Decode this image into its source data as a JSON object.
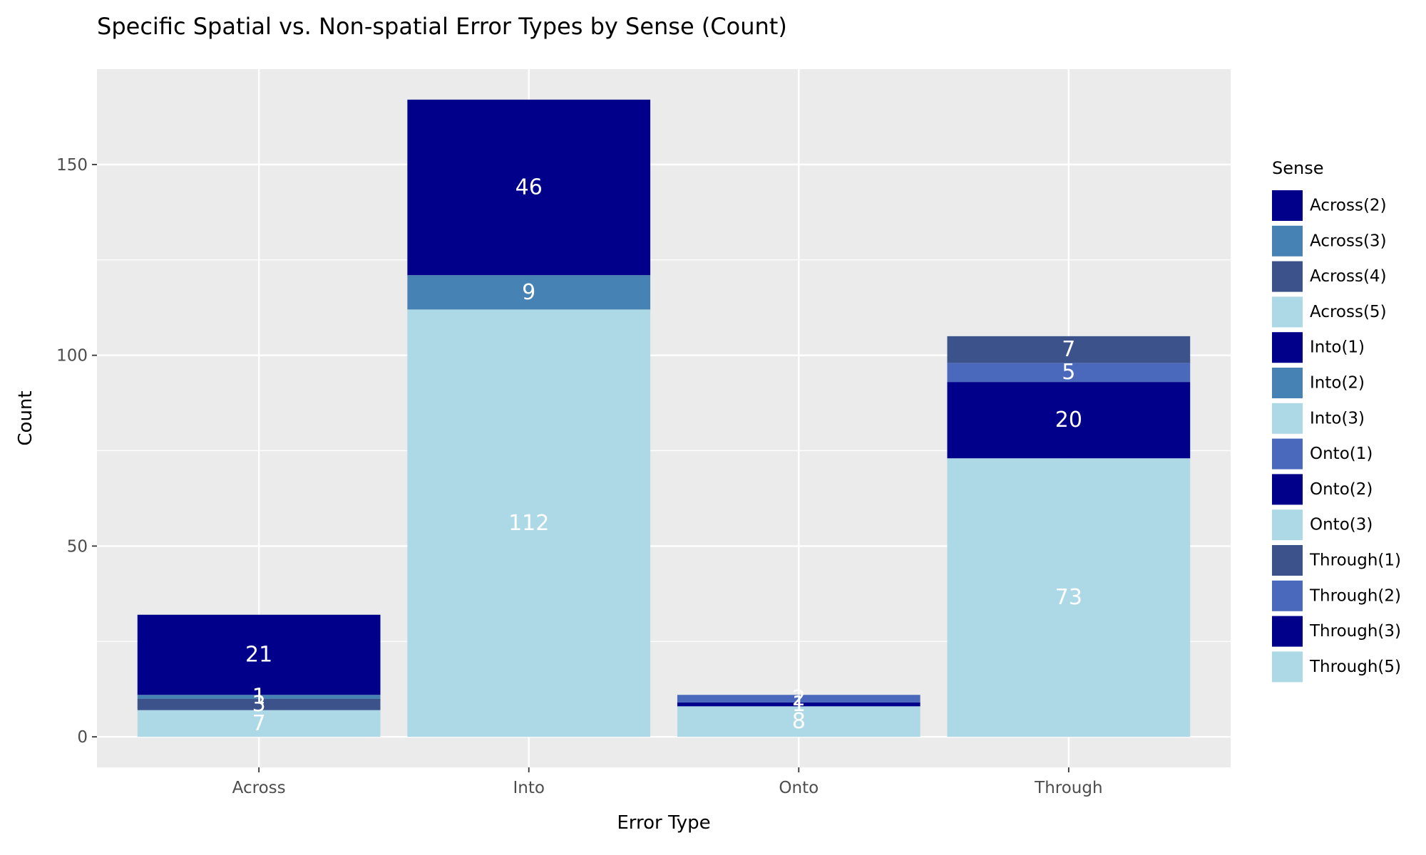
{
  "chart_data": {
    "type": "bar",
    "stacked": true,
    "title": "Specific Spatial vs. Non-spatial Error Types by Sense (Count)",
    "xlabel": "Error Type",
    "ylabel": "Count",
    "categories": [
      "Across",
      "Into",
      "Onto",
      "Through"
    ],
    "ylim": [
      -8,
      175
    ],
    "yticks": [
      0,
      50,
      100,
      150
    ],
    "grid": true,
    "legend_title": "Sense",
    "legend_position": "right",
    "legend": [
      {
        "name": "Across(2)",
        "color": "#00008b"
      },
      {
        "name": "Across(3)",
        "color": "#4682b4"
      },
      {
        "name": "Across(4)",
        "color": "#3b528b"
      },
      {
        "name": "Across(5)",
        "color": "#add8e6"
      },
      {
        "name": "Into(1)",
        "color": "#00008b"
      },
      {
        "name": "Into(2)",
        "color": "#4682b4"
      },
      {
        "name": "Into(3)",
        "color": "#add8e6"
      },
      {
        "name": "Onto(1)",
        "color": "#4a69bd"
      },
      {
        "name": "Onto(2)",
        "color": "#00008b"
      },
      {
        "name": "Onto(3)",
        "color": "#add8e6"
      },
      {
        "name": "Through(1)",
        "color": "#3b528b"
      },
      {
        "name": "Through(2)",
        "color": "#4a69bd"
      },
      {
        "name": "Through(3)",
        "color": "#00008b"
      },
      {
        "name": "Through(5)",
        "color": "#add8e6"
      }
    ],
    "stacks": [
      {
        "category": "Across",
        "segments": [
          {
            "sense": "Across(5)",
            "value": 7
          },
          {
            "sense": "Across(4)",
            "value": 3
          },
          {
            "sense": "Across(3)",
            "value": 1
          },
          {
            "sense": "Across(2)",
            "value": 21
          }
        ]
      },
      {
        "category": "Into",
        "segments": [
          {
            "sense": "Into(3)",
            "value": 112
          },
          {
            "sense": "Into(2)",
            "value": 9
          },
          {
            "sense": "Into(1)",
            "value": 46
          }
        ]
      },
      {
        "category": "Onto",
        "segments": [
          {
            "sense": "Onto(3)",
            "value": 8
          },
          {
            "sense": "Onto(2)",
            "value": 1
          },
          {
            "sense": "Onto(1)",
            "value": 2
          }
        ]
      },
      {
        "category": "Through",
        "segments": [
          {
            "sense": "Through(5)",
            "value": 73
          },
          {
            "sense": "Through(3)",
            "value": 20
          },
          {
            "sense": "Through(2)",
            "value": 5
          },
          {
            "sense": "Through(1)",
            "value": 7
          }
        ]
      }
    ]
  }
}
